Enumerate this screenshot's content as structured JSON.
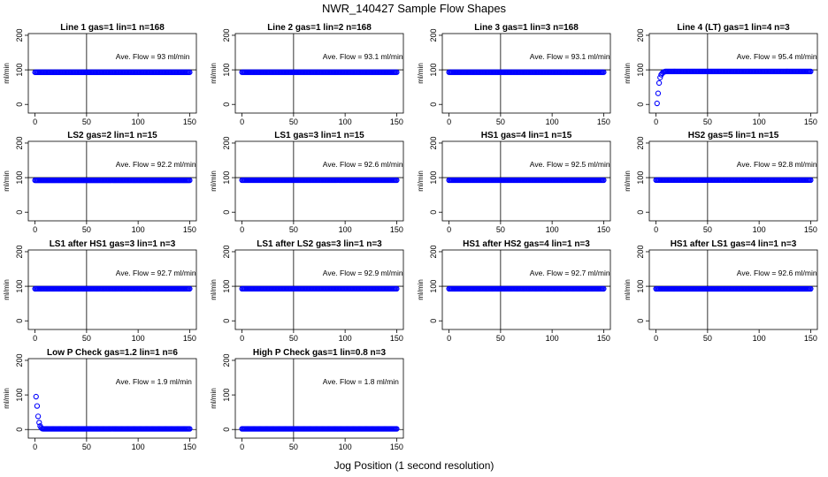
{
  "figure": {
    "title": "NWR_140427  Sample Flow Shapes",
    "xlabel": "Jog Position (1 second resolution)"
  },
  "colors": {
    "points": "#0000ff",
    "axes": "#000000"
  },
  "chart_data": [
    {
      "type": "scatter",
      "title": "Line 1 gas=1 lin=1 n=168",
      "ylabel": "ml/min",
      "xlim": [
        0,
        150
      ],
      "ylim": [
        -25,
        205
      ],
      "xticks": [
        "0",
        "50",
        "100",
        "150"
      ],
      "yticks": [
        "0",
        "100",
        "200"
      ],
      "avg_label": "Ave. Flow = 93  ml/min",
      "vline_x": 50,
      "hline_y": 100,
      "points": [
        [
          0,
          93
        ],
        [
          150,
          93
        ]
      ],
      "profile": "flat",
      "value": 93
    },
    {
      "type": "scatter",
      "title": "Line 2 gas=1 lin=2 n=168",
      "ylabel": "ml/min",
      "xlim": [
        0,
        150
      ],
      "ylim": [
        -25,
        205
      ],
      "xticks": [
        "0",
        "50",
        "100",
        "150"
      ],
      "yticks": [
        "0",
        "100",
        "200"
      ],
      "avg_label": "Ave. Flow = 93.1  ml/min",
      "vline_x": 50,
      "hline_y": 100,
      "points": [
        [
          0,
          93.1
        ],
        [
          150,
          93.1
        ]
      ],
      "profile": "flat",
      "value": 93.1
    },
    {
      "type": "scatter",
      "title": "Line 3 gas=1 lin=3 n=168",
      "ylabel": "ml/min",
      "xlim": [
        0,
        150
      ],
      "ylim": [
        -25,
        205
      ],
      "xticks": [
        "0",
        "50",
        "100",
        "150"
      ],
      "yticks": [
        "0",
        "100",
        "200"
      ],
      "avg_label": "Ave. Flow = 93.1  ml/min",
      "vline_x": 50,
      "hline_y": 100,
      "points": [
        [
          0,
          93.1
        ],
        [
          150,
          93.1
        ]
      ],
      "profile": "flat",
      "value": 93.1
    },
    {
      "type": "scatter",
      "title": "Line 4 (LT) gas=1 lin=4 n=3",
      "ylabel": "ml/min",
      "xlim": [
        0,
        150
      ],
      "ylim": [
        -25,
        205
      ],
      "xticks": [
        "0",
        "50",
        "100",
        "150"
      ],
      "yticks": [
        "0",
        "100",
        "200"
      ],
      "avg_label": "Ave. Flow = 95.4  ml/min",
      "vline_x": 50,
      "hline_y": 100,
      "points": [
        [
          1,
          3
        ],
        [
          2,
          32
        ],
        [
          3,
          62
        ],
        [
          4,
          78
        ],
        [
          5,
          86
        ],
        [
          6,
          90
        ],
        [
          7,
          93
        ],
        [
          8,
          94
        ],
        [
          150,
          95.4
        ]
      ],
      "profile": "rise",
      "value": 95.4
    },
    {
      "type": "scatter",
      "title": "LS2 gas=2 lin=1 n=15",
      "ylabel": "ml/min",
      "xlim": [
        0,
        150
      ],
      "ylim": [
        -25,
        205
      ],
      "xticks": [
        "0",
        "50",
        "100",
        "150"
      ],
      "yticks": [
        "0",
        "100",
        "200"
      ],
      "avg_label": "Ave. Flow = 92.2  ml/min",
      "vline_x": 50,
      "hline_y": 100,
      "points": [
        [
          0,
          92.2
        ],
        [
          150,
          92.2
        ]
      ],
      "profile": "flat",
      "value": 92.2
    },
    {
      "type": "scatter",
      "title": "LS1 gas=3 lin=1 n=15",
      "ylabel": "ml/min",
      "xlim": [
        0,
        150
      ],
      "ylim": [
        -25,
        205
      ],
      "xticks": [
        "0",
        "50",
        "100",
        "150"
      ],
      "yticks": [
        "0",
        "100",
        "200"
      ],
      "avg_label": "Ave. Flow = 92.6  ml/min",
      "vline_x": 50,
      "hline_y": 100,
      "points": [
        [
          0,
          92.6
        ],
        [
          150,
          92.6
        ]
      ],
      "profile": "flat",
      "value": 92.6
    },
    {
      "type": "scatter",
      "title": "HS1 gas=4 lin=1 n=15",
      "ylabel": "ml/min",
      "xlim": [
        0,
        150
      ],
      "ylim": [
        -25,
        205
      ],
      "xticks": [
        "0",
        "50",
        "100",
        "150"
      ],
      "yticks": [
        "0",
        "100",
        "200"
      ],
      "avg_label": "Ave. Flow = 92.5  ml/min",
      "vline_x": 50,
      "hline_y": 100,
      "points": [
        [
          0,
          92.5
        ],
        [
          150,
          92.5
        ]
      ],
      "profile": "flat",
      "value": 92.5
    },
    {
      "type": "scatter",
      "title": "HS2 gas=5 lin=1 n=15",
      "ylabel": "ml/min",
      "xlim": [
        0,
        150
      ],
      "ylim": [
        -25,
        205
      ],
      "xticks": [
        "0",
        "50",
        "100",
        "150"
      ],
      "yticks": [
        "0",
        "100",
        "200"
      ],
      "avg_label": "Ave. Flow = 92.8  ml/min",
      "vline_x": 50,
      "hline_y": 100,
      "points": [
        [
          0,
          92.8
        ],
        [
          150,
          92.8
        ]
      ],
      "profile": "flat",
      "value": 92.8
    },
    {
      "type": "scatter",
      "title": "LS1 after HS1 gas=3 lin=1 n=3",
      "ylabel": "ml/min",
      "xlim": [
        0,
        150
      ],
      "ylim": [
        -25,
        205
      ],
      "xticks": [
        "0",
        "50",
        "100",
        "150"
      ],
      "yticks": [
        "0",
        "100",
        "200"
      ],
      "avg_label": "Ave. Flow = 92.7  ml/min",
      "vline_x": 50,
      "hline_y": 100,
      "points": [
        [
          0,
          92.7
        ],
        [
          150,
          92.7
        ]
      ],
      "profile": "flat",
      "value": 92.7
    },
    {
      "type": "scatter",
      "title": "LS1 after LS2 gas=3 lin=1 n=3",
      "ylabel": "ml/min",
      "xlim": [
        0,
        150
      ],
      "ylim": [
        -25,
        205
      ],
      "xticks": [
        "0",
        "50",
        "100",
        "150"
      ],
      "yticks": [
        "0",
        "100",
        "200"
      ],
      "avg_label": "Ave. Flow = 92.9  ml/min",
      "vline_x": 50,
      "hline_y": 100,
      "points": [
        [
          0,
          92.9
        ],
        [
          150,
          92.9
        ]
      ],
      "profile": "flat",
      "value": 92.9
    },
    {
      "type": "scatter",
      "title": "HS1 after HS2 gas=4 lin=1 n=3",
      "ylabel": "ml/min",
      "xlim": [
        0,
        150
      ],
      "ylim": [
        -25,
        205
      ],
      "xticks": [
        "0",
        "50",
        "100",
        "150"
      ],
      "yticks": [
        "0",
        "100",
        "200"
      ],
      "avg_label": "Ave. Flow = 92.7  ml/min",
      "vline_x": 50,
      "hline_y": 100,
      "points": [
        [
          0,
          92.7
        ],
        [
          150,
          92.7
        ]
      ],
      "profile": "flat",
      "value": 92.7
    },
    {
      "type": "scatter",
      "title": "HS1 after LS1 gas=4 lin=1 n=3",
      "ylabel": "ml/min",
      "xlim": [
        0,
        150
      ],
      "ylim": [
        -25,
        205
      ],
      "xticks": [
        "0",
        "50",
        "100",
        "150"
      ],
      "yticks": [
        "0",
        "100",
        "200"
      ],
      "avg_label": "Ave. Flow = 92.6  ml/min",
      "vline_x": 50,
      "hline_y": 100,
      "points": [
        [
          0,
          92.6
        ],
        [
          150,
          92.6
        ]
      ],
      "profile": "flat",
      "value": 92.6
    },
    {
      "type": "scatter",
      "title": "Low P Check gas=1.2 lin=1 n=6",
      "ylabel": "ml/min",
      "xlim": [
        0,
        150
      ],
      "ylim": [
        -25,
        205
      ],
      "xticks": [
        "0",
        "50",
        "100",
        "150"
      ],
      "yticks": [
        "0",
        "100",
        "200"
      ],
      "avg_label": "Ave. Flow = 1.9  ml/min",
      "vline_x": 50,
      "hline_y": 0,
      "points": [
        [
          1,
          95
        ],
        [
          2,
          68
        ],
        [
          3,
          38
        ],
        [
          4,
          20
        ],
        [
          5,
          10
        ],
        [
          6,
          5
        ],
        [
          7,
          2.5
        ],
        [
          8,
          1.9
        ],
        [
          150,
          1.9
        ]
      ],
      "profile": "decay",
      "value": 1.9
    },
    {
      "type": "scatter",
      "title": "High P Check gas=1 lin=0.8 n=3",
      "ylabel": "ml/min",
      "xlim": [
        0,
        150
      ],
      "ylim": [
        -25,
        205
      ],
      "xticks": [
        "0",
        "50",
        "100",
        "150"
      ],
      "yticks": [
        "0",
        "100",
        "200"
      ],
      "avg_label": "Ave. Flow = 1.8  ml/min",
      "vline_x": 50,
      "hline_y": 0,
      "points": [
        [
          0,
          1.8
        ],
        [
          150,
          1.8
        ]
      ],
      "profile": "flat",
      "value": 1.8
    }
  ]
}
